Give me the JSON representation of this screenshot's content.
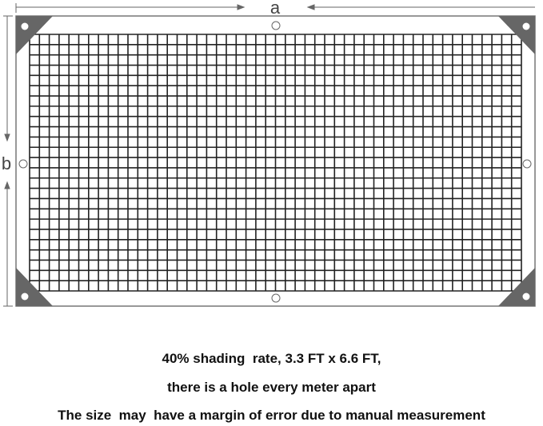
{
  "diagram": {
    "width_label": "a",
    "height_label": "b",
    "frame_color": "#555555",
    "corner_color": "#666666",
    "grid_color": "#222222"
  },
  "captions": [
    "40% shading  rate, 3.3 FT x 6.6 FT,",
    "there is a hole every meter apart",
    "The size  may  have a margin of error due to manual measurement"
  ]
}
